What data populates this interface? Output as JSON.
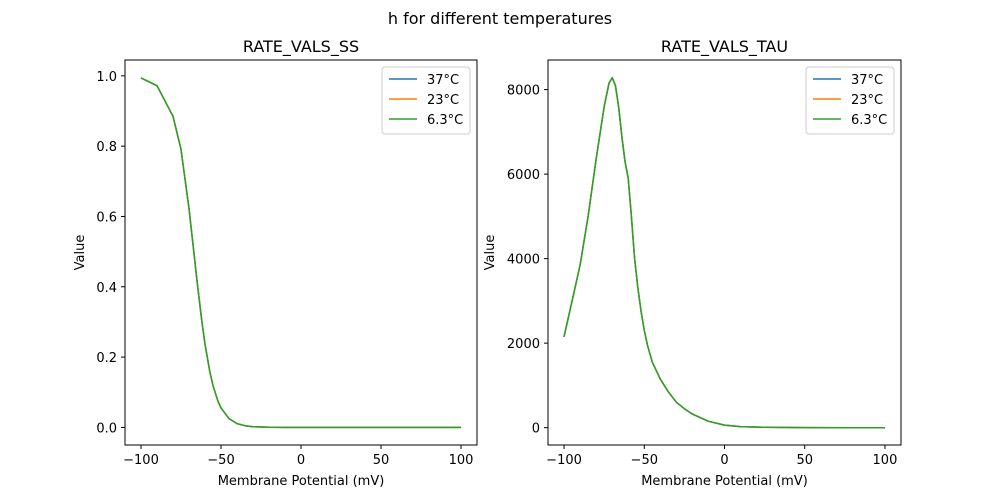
{
  "suptitle": "h for different temperatures",
  "colors": {
    "37°C": "#1f77b4",
    "23°C": "#ff7f0e",
    "6.3°C": "#2ca02c"
  },
  "chart_data": [
    {
      "type": "line",
      "title": "RATE_VALS_SS",
      "xlabel": "Membrane Potential (mV)",
      "ylabel": "Value",
      "xlim": [
        -110,
        110
      ],
      "ylim": [
        -0.05,
        1.045
      ],
      "xticks": [
        -100,
        -50,
        0,
        50,
        100
      ],
      "xtick_labels": [
        "−100",
        "−50",
        "0",
        "50",
        "100"
      ],
      "yticks": [
        0.0,
        0.2,
        0.4,
        0.6,
        0.8,
        1.0
      ],
      "ytick_labels": [
        "0.0",
        "0.2",
        "0.4",
        "0.6",
        "0.8",
        "1.0"
      ],
      "grid": false,
      "legend": "top-right",
      "x": [
        -100,
        -90,
        -80,
        -75,
        -70,
        -67,
        -65,
        -62,
        -60,
        -57,
        -55,
        -52,
        -50,
        -45,
        -40,
        -35,
        -30,
        -20,
        -10,
        0,
        25,
        50,
        75,
        100
      ],
      "series": [
        {
          "name": "37°C",
          "values": [
            0.994,
            0.972,
            0.885,
            0.791,
            0.622,
            0.5,
            0.417,
            0.303,
            0.237,
            0.159,
            0.119,
            0.076,
            0.0555,
            0.025,
            0.011,
            0.0048,
            0.0021,
            0.0004,
            0.0001,
            0,
            0,
            0,
            0,
            0
          ]
        },
        {
          "name": "23°C",
          "values": [
            0.994,
            0.972,
            0.885,
            0.791,
            0.622,
            0.5,
            0.417,
            0.303,
            0.237,
            0.159,
            0.119,
            0.076,
            0.0555,
            0.025,
            0.011,
            0.0048,
            0.0021,
            0.0004,
            0.0001,
            0,
            0,
            0,
            0,
            0
          ]
        },
        {
          "name": "6.3°C",
          "values": [
            0.994,
            0.972,
            0.885,
            0.791,
            0.622,
            0.5,
            0.417,
            0.303,
            0.237,
            0.159,
            0.119,
            0.076,
            0.0555,
            0.025,
            0.011,
            0.0048,
            0.0021,
            0.0004,
            0.0001,
            0,
            0,
            0,
            0,
            0
          ]
        }
      ]
    },
    {
      "type": "line",
      "title": "RATE_VALS_TAU",
      "xlabel": "Membrane Potential (mV)",
      "ylabel": "Value",
      "xlim": [
        -110,
        110
      ],
      "ylim": [
        -410,
        8700
      ],
      "xticks": [
        -100,
        -50,
        0,
        50,
        100
      ],
      "xtick_labels": [
        "−100",
        "−50",
        "0",
        "50",
        "100"
      ],
      "yticks": [
        0,
        2000,
        4000,
        6000,
        8000
      ],
      "ytick_labels": [
        "0",
        "2000",
        "4000",
        "6000",
        "8000"
      ],
      "grid": false,
      "legend": "top-right",
      "x": [
        -100,
        -95,
        -90,
        -85,
        -80,
        -75,
        -72,
        -70,
        -68,
        -66,
        -64,
        -62,
        -60,
        -58,
        -56,
        -54,
        -52,
        -50,
        -48,
        -45,
        -40,
        -35,
        -30,
        -25,
        -20,
        -10,
        0,
        10,
        25,
        50,
        75,
        100
      ],
      "series": [
        {
          "name": "37°C",
          "values": [
            2150,
            3000,
            3850,
            5000,
            6350,
            7600,
            8150,
            8280,
            8100,
            7600,
            6900,
            6300,
            5900,
            5000,
            4000,
            3300,
            2750,
            2300,
            1950,
            1550,
            1150,
            850,
            600,
            450,
            320,
            150,
            60,
            25,
            8,
            1,
            0,
            0
          ]
        },
        {
          "name": "23°C",
          "values": [
            2150,
            3000,
            3850,
            5000,
            6350,
            7600,
            8150,
            8280,
            8100,
            7600,
            6900,
            6300,
            5900,
            5000,
            4000,
            3300,
            2750,
            2300,
            1950,
            1550,
            1150,
            850,
            600,
            450,
            320,
            150,
            60,
            25,
            8,
            1,
            0,
            0
          ]
        },
        {
          "name": "6.3°C",
          "values": [
            2150,
            3000,
            3850,
            5000,
            6350,
            7600,
            8150,
            8280,
            8100,
            7600,
            6900,
            6300,
            5900,
            5000,
            4000,
            3300,
            2750,
            2300,
            1950,
            1550,
            1150,
            850,
            600,
            450,
            320,
            150,
            60,
            25,
            8,
            1,
            0,
            0
          ]
        }
      ]
    }
  ]
}
